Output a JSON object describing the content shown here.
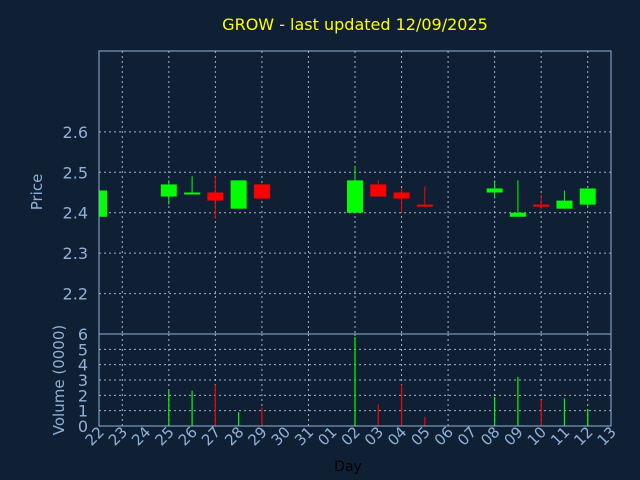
{
  "colors": {
    "background": "#0f2035",
    "title": "#ffff00",
    "axis_text": "#8fb2d6",
    "frame": "#8fb2d6",
    "grid": "#c8d6e6",
    "up": "#00ff00",
    "down": "#ff0000"
  },
  "chart_data": [
    {
      "type": "candlestick",
      "title": "GROW - last updated 12/09/2025",
      "ylabel": "Price",
      "ylim": [
        2.1,
        2.8
      ],
      "yticks": [
        "2.2",
        "2.3",
        "2.4",
        "2.5",
        "2.6"
      ],
      "grid": true,
      "categories": [
        "22",
        "23",
        "24",
        "25",
        "26",
        "27",
        "28",
        "29",
        "30",
        "31",
        "01",
        "02",
        "03",
        "04",
        "05",
        "06",
        "07",
        "08",
        "09",
        "10",
        "11",
        "12",
        "13"
      ],
      "candles": [
        {
          "day": "22",
          "open": 2.39,
          "high": 2.455,
          "low": 2.39,
          "close": 2.455
        },
        {
          "day": "25",
          "open": 2.44,
          "high": 2.48,
          "low": 2.42,
          "close": 2.47
        },
        {
          "day": "26",
          "open": 2.45,
          "high": 2.49,
          "low": 2.45,
          "close": 2.45
        },
        {
          "day": "27",
          "open": 2.45,
          "high": 2.49,
          "low": 2.385,
          "close": 2.43
        },
        {
          "day": "28",
          "open": 2.41,
          "high": 2.48,
          "low": 2.41,
          "close": 2.48
        },
        {
          "day": "29",
          "open": 2.47,
          "high": 2.47,
          "low": 2.435,
          "close": 2.435
        },
        {
          "day": "02",
          "open": 2.4,
          "high": 2.515,
          "low": 2.4,
          "close": 2.48
        },
        {
          "day": "03",
          "open": 2.47,
          "high": 2.48,
          "low": 2.44,
          "close": 2.44
        },
        {
          "day": "04",
          "open": 2.45,
          "high": 2.46,
          "low": 2.4,
          "close": 2.435
        },
        {
          "day": "05",
          "open": 2.42,
          "high": 2.465,
          "low": 2.415,
          "close": 2.418
        },
        {
          "day": "08",
          "open": 2.45,
          "high": 2.48,
          "low": 2.435,
          "close": 2.46
        },
        {
          "day": "09",
          "open": 2.39,
          "high": 2.48,
          "low": 2.39,
          "close": 2.4
        },
        {
          "day": "10",
          "open": 2.42,
          "high": 2.445,
          "low": 2.41,
          "close": 2.415
        },
        {
          "day": "11",
          "open": 2.41,
          "high": 2.455,
          "low": 2.41,
          "close": 2.43
        },
        {
          "day": "12",
          "open": 2.42,
          "high": 2.46,
          "low": 2.415,
          "close": 2.46
        }
      ]
    },
    {
      "type": "bar",
      "ylabel": "Volume (0000)",
      "xlabel": "Day",
      "ylim": [
        0,
        6
      ],
      "yticks": [
        "0",
        "1",
        "2",
        "3",
        "4",
        "5",
        "6"
      ],
      "grid": true,
      "volumes": [
        {
          "day": "22",
          "value": 0.0,
          "direction": "up"
        },
        {
          "day": "25",
          "value": 2.3,
          "direction": "up"
        },
        {
          "day": "26",
          "value": 2.3,
          "direction": "up"
        },
        {
          "day": "27",
          "value": 2.7,
          "direction": "down"
        },
        {
          "day": "28",
          "value": 0.9,
          "direction": "up"
        },
        {
          "day": "29",
          "value": 1.2,
          "direction": "down"
        },
        {
          "day": "02",
          "value": 5.8,
          "direction": "up"
        },
        {
          "day": "03",
          "value": 1.4,
          "direction": "down"
        },
        {
          "day": "04",
          "value": 2.7,
          "direction": "down"
        },
        {
          "day": "05",
          "value": 0.6,
          "direction": "down"
        },
        {
          "day": "08",
          "value": 1.9,
          "direction": "up"
        },
        {
          "day": "09",
          "value": 3.2,
          "direction": "up"
        },
        {
          "day": "10",
          "value": 1.7,
          "direction": "down"
        },
        {
          "day": "11",
          "value": 1.8,
          "direction": "up"
        },
        {
          "day": "12",
          "value": 1.1,
          "direction": "up"
        }
      ]
    }
  ]
}
